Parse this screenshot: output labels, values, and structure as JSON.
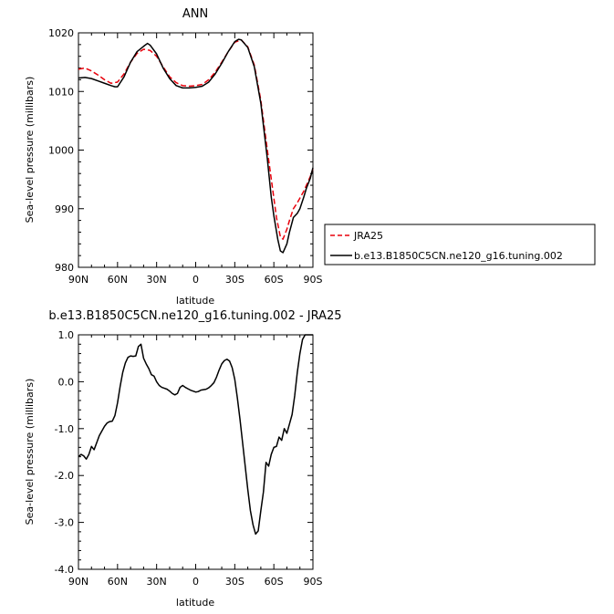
{
  "chart_data": [
    {
      "type": "line",
      "title": "ANN",
      "xlabel": "latitude",
      "ylabel": "Sea-level pressure (millibars)",
      "xlim": [
        90,
        -90
      ],
      "ylim": [
        980,
        1020
      ],
      "x_ticks": [
        90,
        60,
        30,
        0,
        -30,
        -60,
        -90
      ],
      "x_tick_labels": [
        "90N",
        "60N",
        "30N",
        "0",
        "30S",
        "60S",
        "90S"
      ],
      "y_ticks": [
        980,
        990,
        1000,
        1010,
        1020
      ],
      "y_tick_labels": [
        "980",
        "990",
        "1000",
        "1010",
        "1020"
      ],
      "legend_position": "right",
      "series": [
        {
          "name": "JRA25",
          "color": "#e8000b",
          "style": "dashed",
          "x": [
            90,
            85,
            80,
            75,
            70,
            65,
            60,
            55,
            50,
            45,
            40,
            35,
            30,
            25,
            20,
            15,
            10,
            5,
            0,
            -5,
            -10,
            -15,
            -20,
            -25,
            -30,
            -35,
            -40,
            -45,
            -50,
            -55,
            -60,
            -62,
            -65,
            -67,
            -70,
            -72,
            -75,
            -78,
            -80,
            -83,
            -85,
            -88,
            -90
          ],
          "y": [
            1013.8,
            1014.0,
            1013.5,
            1012.8,
            1012.0,
            1011.4,
            1011.6,
            1013.0,
            1015.0,
            1016.5,
            1017.2,
            1017.0,
            1016.0,
            1014.2,
            1012.5,
            1011.5,
            1011.0,
            1010.9,
            1011.0,
            1011.2,
            1012.0,
            1013.3,
            1015.0,
            1016.8,
            1018.4,
            1018.8,
            1017.6,
            1014.5,
            1008.5,
            1000.0,
            991.8,
            988.5,
            985.2,
            984.8,
            986.5,
            988.0,
            990.0,
            991.0,
            991.8,
            993.0,
            994.0,
            995.5,
            996.8
          ]
        },
        {
          "name": "b.e13.B1850C5CN.ne120_g16.tuning.002",
          "color": "#000000",
          "style": "solid",
          "x": [
            90,
            85,
            80,
            75,
            70,
            65,
            62,
            60,
            55,
            50,
            45,
            40,
            37,
            35,
            30,
            25,
            20,
            15,
            10,
            5,
            0,
            -5,
            -10,
            -15,
            -20,
            -25,
            -30,
            -33,
            -35,
            -40,
            -45,
            -50,
            -55,
            -58,
            -60,
            -63,
            -65,
            -67,
            -70,
            -72,
            -75,
            -78,
            -80,
            -83,
            -85,
            -88,
            -90
          ],
          "y": [
            1012.3,
            1012.4,
            1012.2,
            1011.8,
            1011.4,
            1011.0,
            1010.8,
            1010.8,
            1012.5,
            1015.0,
            1016.8,
            1017.7,
            1018.2,
            1017.9,
            1016.4,
            1014.0,
            1012.2,
            1011.0,
            1010.6,
            1010.6,
            1010.7,
            1010.9,
            1011.6,
            1013.0,
            1014.8,
            1016.8,
            1018.5,
            1018.9,
            1018.8,
            1017.5,
            1014.2,
            1008.0,
            998.5,
            992.0,
            988.8,
            984.8,
            982.8,
            982.5,
            984.0,
            986.0,
            988.5,
            989.2,
            990.0,
            992.0,
            993.5,
            995.2,
            997.0
          ]
        }
      ]
    },
    {
      "type": "line",
      "title": "b.e13.B1850C5CN.ne120_g16.tuning.002 - JRA25",
      "xlabel": "latitude",
      "ylabel": "Sea-level pressure (millibars)",
      "xlim": [
        90,
        -90
      ],
      "ylim": [
        -4.0,
        1.0
      ],
      "x_ticks": [
        90,
        60,
        30,
        0,
        -30,
        -60,
        -90
      ],
      "x_tick_labels": [
        "90N",
        "60N",
        "30N",
        "0",
        "30S",
        "60S",
        "90S"
      ],
      "y_ticks": [
        -4.0,
        -3.0,
        -2.0,
        -1.0,
        0.0,
        1.0
      ],
      "y_tick_labels": [
        "-4.0",
        "-3.0",
        "-2.0",
        "-1.0",
        "0.0",
        "1.0"
      ],
      "series": [
        {
          "color": "#000000",
          "style": "solid",
          "x": [
            90,
            88,
            86,
            84,
            82,
            80,
            78,
            76,
            74,
            72,
            70,
            68,
            66,
            64,
            62,
            60,
            58,
            56,
            54,
            52,
            50,
            48,
            46,
            44,
            42,
            40,
            38,
            36,
            34,
            32,
            30,
            28,
            26,
            24,
            22,
            20,
            18,
            16,
            14,
            12,
            10,
            8,
            6,
            4,
            2,
            0,
            -2,
            -4,
            -6,
            -8,
            -10,
            -12,
            -14,
            -16,
            -18,
            -20,
            -22,
            -24,
            -26,
            -28,
            -30,
            -32,
            -34,
            -36,
            -38,
            -40,
            -42,
            -44,
            -46,
            -48,
            -50,
            -52,
            -54,
            -56,
            -58,
            -60,
            -62,
            -64,
            -66,
            -68,
            -70,
            -72,
            -74,
            -76,
            -78,
            -80,
            -82,
            -84,
            -86,
            -88,
            -90
          ],
          "y": [
            -1.6,
            -1.55,
            -1.58,
            -1.65,
            -1.55,
            -1.38,
            -1.45,
            -1.3,
            -1.15,
            -1.05,
            -0.95,
            -0.88,
            -0.85,
            -0.84,
            -0.72,
            -0.45,
            -0.1,
            0.2,
            0.4,
            0.52,
            0.55,
            0.54,
            0.55,
            0.75,
            0.8,
            0.5,
            0.38,
            0.28,
            0.15,
            0.12,
            0.0,
            -0.08,
            -0.12,
            -0.14,
            -0.16,
            -0.2,
            -0.25,
            -0.28,
            -0.25,
            -0.12,
            -0.08,
            -0.12,
            -0.15,
            -0.18,
            -0.2,
            -0.22,
            -0.21,
            -0.18,
            -0.17,
            -0.16,
            -0.13,
            -0.08,
            -0.02,
            0.1,
            0.25,
            0.38,
            0.45,
            0.48,
            0.44,
            0.3,
            0.05,
            -0.35,
            -0.8,
            -1.3,
            -1.8,
            -2.3,
            -2.75,
            -3.05,
            -3.25,
            -3.18,
            -2.75,
            -2.35,
            -1.72,
            -1.8,
            -1.55,
            -1.4,
            -1.38,
            -1.18,
            -1.25,
            -1.0,
            -1.1,
            -0.9,
            -0.7,
            -0.3,
            0.2,
            0.6,
            0.9,
            1.0,
            1.0,
            1.0,
            1.0
          ]
        }
      ]
    }
  ]
}
